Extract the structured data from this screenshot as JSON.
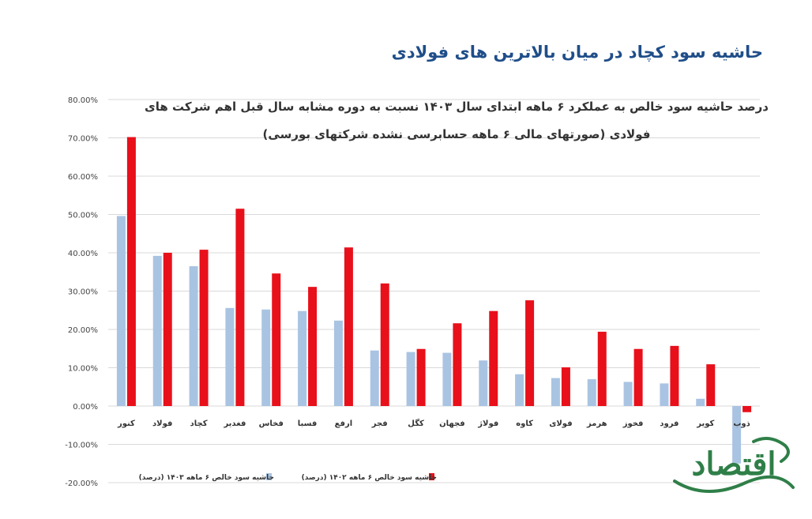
{
  "header": {
    "title": "حاشیه سود کچاد در میان بالاترین های فولادی",
    "logo_text": "اقتصاد"
  },
  "colors": {
    "series_1403": "#a9c4e2",
    "series_1402": "#e8101a",
    "title": "#1f4e89",
    "logo": "#2f7f48"
  },
  "chart_data": {
    "type": "bar",
    "title_lines": [
      "درصد حاشیه سود خالص به عملکرد ۶ ماهه ابتدای سال ۱۴۰۳ نسبت به دوره مشابه سال قبل اهم شرکت های",
      "فولادی (صورتهای مالی ۶ ماهه حسابرسی نشده شرکتهای بورسی)"
    ],
    "categories": [
      "کنور",
      "فولاد",
      "کچاد",
      "فغدیر",
      "فخاس",
      "فسبا",
      "ارفع",
      "فجر",
      "کگل",
      "فجهان",
      "فولاژ",
      "کاوه",
      "فولای",
      "هرمز",
      "فخوز",
      "فرود",
      "کویر",
      "ذوب"
    ],
    "series": [
      {
        "name": "حاشیه سود خالص ۶ ماهه ۱۴۰۳ (درصد)",
        "values": [
          49.6,
          39.2,
          36.5,
          25.6,
          25.2,
          24.8,
          22.3,
          14.5,
          14.1,
          13.9,
          11.9,
          8.3,
          7.3,
          7.0,
          6.3,
          5.9,
          1.9,
          -15.0
        ]
      },
      {
        "name": "حاشیه سود خالص ۶ ماهه ۱۴۰۲ (درصد)",
        "values": [
          70.2,
          40.0,
          40.8,
          51.5,
          34.6,
          31.1,
          41.4,
          32.0,
          14.9,
          21.6,
          24.8,
          27.6,
          10.1,
          19.4,
          14.9,
          15.7,
          10.9,
          -1.6
        ]
      }
    ],
    "yticks": [
      "80.00%",
      "70.00%",
      "60.00%",
      "50.00%",
      "40.00%",
      "30.00%",
      "20.00%",
      "10.00%",
      "0.00%",
      "-10.00%",
      "-20.00%"
    ],
    "ylim": [
      -20,
      80
    ],
    "grid": true,
    "legend_position": "bottom"
  }
}
